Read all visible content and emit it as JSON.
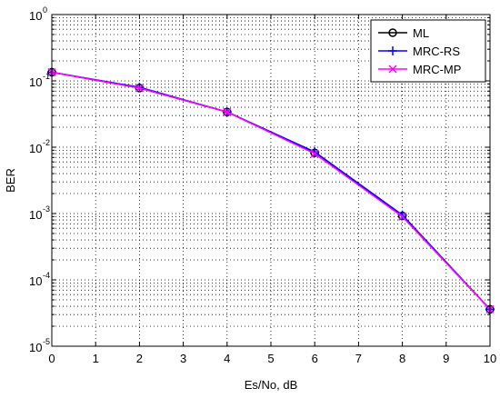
{
  "chart_data": {
    "type": "line",
    "xlabel": "Es/No, dB",
    "ylabel": "BER",
    "xlim": [
      0,
      10
    ],
    "ylim": [
      1e-05,
      1
    ],
    "y_scale": "log",
    "grid": true,
    "legend_position": "top-right",
    "x_ticks": [
      "0",
      "1",
      "2",
      "3",
      "4",
      "5",
      "6",
      "7",
      "8",
      "9",
      "10"
    ],
    "y_ticks": [
      {
        "base": "10",
        "exp": "0"
      },
      {
        "base": "10",
        "exp": "-1"
      },
      {
        "base": "10",
        "exp": "-2"
      },
      {
        "base": "10",
        "exp": "-3"
      },
      {
        "base": "10",
        "exp": "-4"
      },
      {
        "base": "10",
        "exp": "-5"
      }
    ],
    "x": [
      0,
      2,
      4,
      6,
      8,
      10
    ],
    "series": [
      {
        "name": "ML",
        "color": "#000000",
        "marker": "circle",
        "values": [
          0.135,
          0.078,
          0.034,
          0.0082,
          0.00092,
          3.6e-05
        ]
      },
      {
        "name": "MRC-RS",
        "color": "#0000ff",
        "marker": "plus",
        "values": [
          0.135,
          0.08,
          0.034,
          0.0085,
          0.00095,
          3.6e-05
        ]
      },
      {
        "name": "MRC-MP",
        "color": "#ff00ff",
        "marker": "x",
        "values": [
          0.135,
          0.078,
          0.034,
          0.008,
          0.0009,
          3.6e-05
        ]
      }
    ]
  }
}
